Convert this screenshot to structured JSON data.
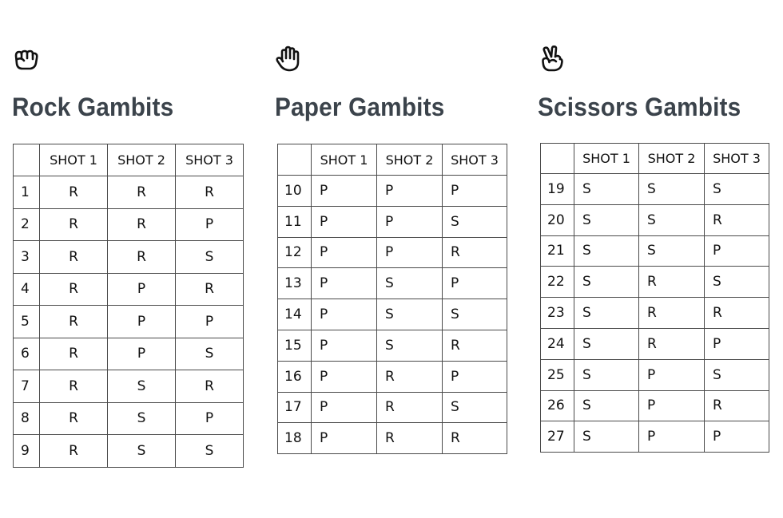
{
  "panels": [
    {
      "id": "rock",
      "title": "Rock Gambits",
      "icon": "fist-icon",
      "headers": [
        "",
        "SHOT 1",
        "SHOT 2",
        "SHOT 3"
      ],
      "rows": [
        [
          "1",
          "R",
          "R",
          "R"
        ],
        [
          "2",
          "R",
          "R",
          "P"
        ],
        [
          "3",
          "R",
          "R",
          "S"
        ],
        [
          "4",
          "R",
          "P",
          "R"
        ],
        [
          "5",
          "R",
          "P",
          "P"
        ],
        [
          "6",
          "R",
          "P",
          "S"
        ],
        [
          "7",
          "R",
          "S",
          "R"
        ],
        [
          "8",
          "R",
          "S",
          "P"
        ],
        [
          "9",
          "R",
          "S",
          "S"
        ]
      ]
    },
    {
      "id": "paper",
      "title": "Paper Gambits",
      "icon": "open-hand-icon",
      "headers": [
        "",
        "SHOT 1",
        "SHOT 2",
        "SHOT 3"
      ],
      "rows": [
        [
          "10",
          "P",
          "P",
          "P"
        ],
        [
          "11",
          "P",
          "P",
          "S"
        ],
        [
          "12",
          "P",
          "P",
          "R"
        ],
        [
          "13",
          "P",
          "S",
          "P"
        ],
        [
          "14",
          "P",
          "S",
          "S"
        ],
        [
          "15",
          "P",
          "S",
          "R"
        ],
        [
          "16",
          "P",
          "R",
          "P"
        ],
        [
          "17",
          "P",
          "R",
          "S"
        ],
        [
          "18",
          "P",
          "R",
          "R"
        ]
      ]
    },
    {
      "id": "scissors",
      "title": "Scissors Gambits",
      "icon": "scissors-hand-icon",
      "headers": [
        "",
        "SHOT 1",
        "SHOT 2",
        "SHOT 3"
      ],
      "rows": [
        [
          "19",
          "S",
          "S",
          "S"
        ],
        [
          "20",
          "S",
          "S",
          "R"
        ],
        [
          "21",
          "S",
          "S",
          "P"
        ],
        [
          "22",
          "S",
          "R",
          "S"
        ],
        [
          "23",
          "S",
          "R",
          "R"
        ],
        [
          "24",
          "S",
          "R",
          "P"
        ],
        [
          "25",
          "S",
          "P",
          "S"
        ],
        [
          "26",
          "S",
          "P",
          "R"
        ],
        [
          "27",
          "S",
          "P",
          "P"
        ]
      ]
    }
  ]
}
